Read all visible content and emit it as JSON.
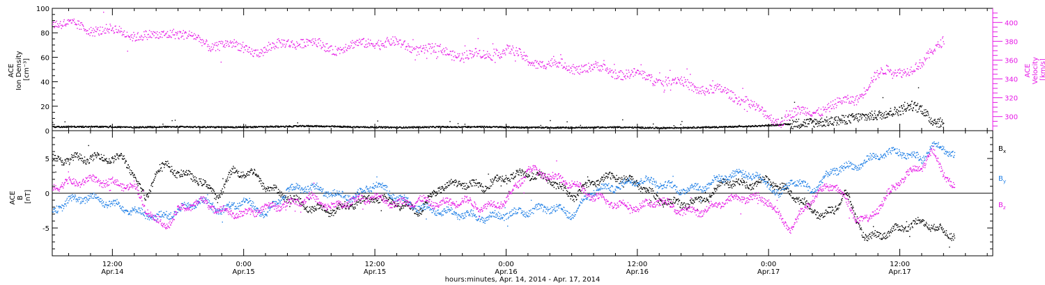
{
  "figure": {
    "footer": "hours:minutes, Apr. 14, 2014 - Apr. 17, 2014"
  },
  "chart_data": [
    {
      "type": "scatter",
      "ylabel_left": [
        "ACE",
        "Ion Density",
        "[cm⁻³]"
      ],
      "ylabel_right": [
        "ACE",
        "Velocity",
        "[km/s]"
      ],
      "ylim_left": [
        0,
        100
      ],
      "ylim_right": [
        285,
        415
      ],
      "yticks_left": [
        0,
        20,
        40,
        60,
        80,
        100
      ],
      "yticks_right": [
        300,
        320,
        340,
        360,
        380,
        400
      ],
      "x_range_hours": [
        6.5,
        92.5
      ],
      "grid": false,
      "series": [
        {
          "axis": "left",
          "color": "#000000",
          "points": [
            [
              6.5,
              3.5
            ],
            [
              10,
              3.6
            ],
            [
              14,
              3.2
            ],
            [
              18,
              3.6
            ],
            [
              22,
              3.2
            ],
            [
              26,
              3.5
            ],
            [
              30,
              4.2
            ],
            [
              34,
              3.4
            ],
            [
              38,
              3.0
            ],
            [
              42,
              3.4
            ],
            [
              46,
              3.5
            ],
            [
              50,
              3.0
            ],
            [
              54,
              2.8
            ],
            [
              58,
              3.2
            ],
            [
              62,
              2.6
            ],
            [
              66,
              3.1
            ],
            [
              70,
              3.8
            ],
            [
              73,
              5.2
            ],
            [
              76,
              7.0
            ],
            [
              78,
              8.0
            ],
            [
              80,
              11
            ],
            [
              82,
              13
            ],
            [
              84,
              17
            ],
            [
              85,
              21
            ],
            [
              86,
              18
            ],
            [
              86.8,
              9
            ],
            [
              87.5,
              7
            ],
            [
              88,
              6.5
            ]
          ]
        },
        {
          "axis": "right",
          "color": "#e617e6",
          "points": [
            [
              6.5,
              402
            ],
            [
              8,
              397
            ],
            [
              10,
              394
            ],
            [
              12,
              391
            ],
            [
              14,
              388
            ],
            [
              16,
              384
            ],
            [
              17.5,
              392
            ],
            [
              19,
              385
            ],
            [
              21,
              376
            ],
            [
              22,
              378
            ],
            [
              24,
              372
            ],
            [
              26,
              370
            ],
            [
              28,
              380
            ],
            [
              30,
              379
            ],
            [
              32,
              373
            ],
            [
              34,
              375
            ],
            [
              36,
              381
            ],
            [
              38,
              377
            ],
            [
              40,
              373
            ],
            [
              42,
              370
            ],
            [
              44,
              366
            ],
            [
              46,
              365
            ],
            [
              48,
              372
            ],
            [
              50,
              360
            ],
            [
              52,
              356
            ],
            [
              54,
              353
            ],
            [
              56,
              352
            ],
            [
              58,
              348
            ],
            [
              60,
              344
            ],
            [
              62,
              340
            ],
            [
              64,
              336
            ],
            [
              66,
              330
            ],
            [
              68,
              326
            ],
            [
              70,
              318
            ],
            [
              71,
              306
            ],
            [
              72,
              300
            ],
            [
              73,
              296
            ],
            [
              74,
              303
            ],
            [
              76,
              306
            ],
            [
              78,
              312
            ],
            [
              80,
              320
            ],
            [
              81.5,
              340
            ],
            [
              83,
              350
            ],
            [
              85,
              350
            ],
            [
              86,
              354
            ],
            [
              87,
              372
            ],
            [
              88,
              385
            ]
          ]
        }
      ]
    },
    {
      "type": "scatter",
      "ylabel": [
        "ACE",
        "B",
        "[nT]"
      ],
      "ylim": [
        -9,
        9
      ],
      "yticks": [
        -5,
        0,
        5
      ],
      "zero_line": true,
      "x_range_hours": [
        6.5,
        92.5
      ],
      "xtick_times": [
        "12:00",
        "0:00",
        "12:00",
        "0:00",
        "12:00",
        "0:00",
        "12:00"
      ],
      "xtick_dates": [
        "Apr.14",
        "Apr.15",
        "Apr.15",
        "Apr.16",
        "Apr.16",
        "Apr.17",
        "Apr.17"
      ],
      "legend_placement": "right",
      "series": [
        {
          "name": "Bx",
          "name_main": "B",
          "name_sub": "x",
          "color": "#000000",
          "points": [
            [
              6.5,
              4.8
            ],
            [
              10,
              5.2
            ],
            [
              13,
              5.0
            ],
            [
              14,
              2.5
            ],
            [
              15,
              -1.0
            ],
            [
              16,
              3.5
            ],
            [
              17,
              4.0
            ],
            [
              18,
              3.0
            ],
            [
              20,
              2.0
            ],
            [
              21.5,
              -0.5
            ],
            [
              23,
              3.2
            ],
            [
              25,
              2.8
            ],
            [
              26,
              1.0
            ],
            [
              28,
              -0.5
            ],
            [
              30,
              -2.0
            ],
            [
              32,
              -2.5
            ],
            [
              34,
              -1.5
            ],
            [
              36,
              -0.5
            ],
            [
              38,
              -1.5
            ],
            [
              40,
              -2.5
            ],
            [
              42,
              1.0
            ],
            [
              44,
              1.5
            ],
            [
              46,
              1.0
            ],
            [
              48,
              2.5
            ],
            [
              50,
              2.8
            ],
            [
              52,
              2.0
            ],
            [
              54,
              -0.5
            ],
            [
              56,
              1.8
            ],
            [
              58,
              2.5
            ],
            [
              60,
              1.5
            ],
            [
              62,
              -1.0
            ],
            [
              64,
              -1.5
            ],
            [
              66,
              -1.0
            ],
            [
              68,
              1.8
            ],
            [
              70,
              1.2
            ],
            [
              72,
              2.0
            ],
            [
              73,
              1.0
            ],
            [
              75,
              -1.0
            ],
            [
              76,
              -2.5
            ],
            [
              77,
              -3.0
            ],
            [
              78,
              -2.5
            ],
            [
              79,
              0.5
            ],
            [
              80,
              -4.0
            ],
            [
              81,
              -6.5
            ],
            [
              82,
              -6.0
            ],
            [
              84,
              -5.0
            ],
            [
              86,
              -4.0
            ],
            [
              88,
              -5.5
            ],
            [
              89,
              -6.0
            ]
          ]
        },
        {
          "name": "By",
          "name_main": "B",
          "name_sub": "y",
          "color": "#1f7fe6",
          "points": [
            [
              6.5,
              -2.5
            ],
            [
              8,
              -1.0
            ],
            [
              10,
              -0.5
            ],
            [
              12,
              -1.5
            ],
            [
              14,
              -2.5
            ],
            [
              16,
              -3.5
            ],
            [
              18,
              -2.5
            ],
            [
              20,
              -1.0
            ],
            [
              22,
              -2.5
            ],
            [
              24,
              -1.0
            ],
            [
              26,
              -3.0
            ],
            [
              28,
              0.5
            ],
            [
              30,
              1.0
            ],
            [
              32,
              0.0
            ],
            [
              34,
              -0.5
            ],
            [
              36,
              1.5
            ],
            [
              38,
              -0.5
            ],
            [
              40,
              -2.0
            ],
            [
              42,
              -2.5
            ],
            [
              44,
              -3.0
            ],
            [
              46,
              -3.5
            ],
            [
              48,
              -3.0
            ],
            [
              50,
              -2.5
            ],
            [
              52,
              -2.0
            ],
            [
              54,
              -3.0
            ],
            [
              56,
              0.5
            ],
            [
              58,
              1.0
            ],
            [
              60,
              2.0
            ],
            [
              62,
              1.5
            ],
            [
              64,
              0.5
            ],
            [
              66,
              1.0
            ],
            [
              68,
              2.5
            ],
            [
              70,
              3.0
            ],
            [
              72,
              1.5
            ],
            [
              73,
              -0.5
            ],
            [
              74,
              2.0
            ],
            [
              76,
              0.5
            ],
            [
              78,
              3.5
            ],
            [
              80,
              4.0
            ],
            [
              82,
              5.5
            ],
            [
              84,
              6.0
            ],
            [
              86,
              5.0
            ],
            [
              87,
              7.0
            ],
            [
              88,
              6.5
            ],
            [
              89,
              5.5
            ]
          ]
        },
        {
          "name": "Bz",
          "name_main": "B",
          "name_sub": "z",
          "color": "#e617e6",
          "points": [
            [
              6.5,
              1.0
            ],
            [
              8,
              1.5
            ],
            [
              10,
              2.0
            ],
            [
              12,
              1.5
            ],
            [
              14,
              1.0
            ],
            [
              15,
              -2.0
            ],
            [
              16,
              -4.0
            ],
            [
              17,
              -4.5
            ],
            [
              18,
              -2.5
            ],
            [
              20,
              -1.0
            ],
            [
              22,
              -2.5
            ],
            [
              24,
              -3.0
            ],
            [
              26,
              -2.0
            ],
            [
              28,
              -1.5
            ],
            [
              30,
              -0.5
            ],
            [
              32,
              -2.0
            ],
            [
              34,
              -1.0
            ],
            [
              36,
              -0.5
            ],
            [
              38,
              -1.5
            ],
            [
              40,
              -1.0
            ],
            [
              42,
              -1.5
            ],
            [
              44,
              -1.0
            ],
            [
              46,
              -2.0
            ],
            [
              48,
              -1.0
            ],
            [
              50,
              3.5
            ],
            [
              52,
              2.5
            ],
            [
              54,
              1.5
            ],
            [
              56,
              -0.5
            ],
            [
              58,
              -1.5
            ],
            [
              60,
              -2.0
            ],
            [
              62,
              -1.0
            ],
            [
              64,
              -2.5
            ],
            [
              66,
              -2.5
            ],
            [
              68,
              -1.0
            ],
            [
              70,
              -0.5
            ],
            [
              72,
              -1.0
            ],
            [
              73,
              -3.5
            ],
            [
              74,
              -5.0
            ],
            [
              76,
              -0.5
            ],
            [
              78,
              1.5
            ],
            [
              80,
              -3.5
            ],
            [
              81,
              -4.0
            ],
            [
              82,
              -2.0
            ],
            [
              83,
              0.0
            ],
            [
              84,
              2.0
            ],
            [
              86,
              4.0
            ],
            [
              87,
              6.0
            ],
            [
              88,
              3.0
            ],
            [
              89,
              0.5
            ]
          ]
        }
      ]
    }
  ]
}
